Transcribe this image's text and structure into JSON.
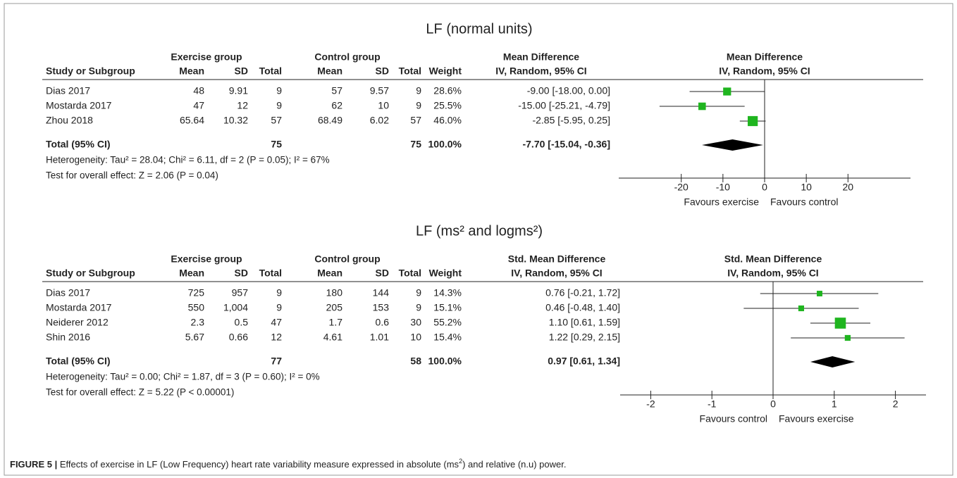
{
  "chart_data": [
    {
      "type": "forest",
      "title": "LF (normal units)",
      "groups": [
        "Exercise group",
        "Control group",
        "Mean Difference"
      ],
      "columns": [
        "Study or Subgroup",
        "Mean",
        "SD",
        "Total",
        "Mean",
        "SD",
        "Total",
        "Weight",
        "IV, Random, 95% CI"
      ],
      "plot_title": "Mean Difference",
      "plot_subtitle": "IV, Random, 95% CI",
      "rows": [
        [
          "Dias 2017",
          "48",
          "9.91",
          "9",
          "57",
          "9.57",
          "9"
        ],
        [
          "Mostarda 2017",
          "47",
          "12",
          "9",
          "62",
          "10",
          "9"
        ],
        [
          "Zhou 2018",
          "65.64",
          "10.32",
          "57",
          "68.49",
          "6.02",
          "57"
        ]
      ],
      "weights": [
        28.6,
        25.5,
        46.0
      ],
      "weight_labels": [
        "28.6%",
        "25.5%",
        "46.0%"
      ],
      "estimates": [
        -9.0,
        -15.0,
        -2.85
      ],
      "ci_low": [
        -18.0,
        -25.21,
        -5.95
      ],
      "ci_high": [
        0.0,
        -4.79,
        0.25
      ],
      "value_labels": [
        "-9.00 [-18.00, 0.00]",
        "-15.00 [-25.21, -4.79]",
        "-2.85 [-5.95, 0.25]"
      ],
      "total": {
        "label": "Total (95% CI)",
        "exercise_total": "75",
        "control_total": "75",
        "weight": "100.0%",
        "estimate": -7.7,
        "ci_low": -15.04,
        "ci_high": -0.36,
        "value_label": "-7.70 [-15.04, -0.36]"
      },
      "heterogeneity": "Heterogeneity: Tau² = 28.04; Chi² = 6.11, df = 2 (P = 0.05); I² = 67%",
      "overall_test": "Test for overall effect: Z = 2.06 (P = 0.04)",
      "xlim": [
        -35,
        35
      ],
      "xticks": [
        -20,
        -10,
        0,
        10,
        20
      ],
      "xlabel_left": "Favours exercise",
      "xlabel_right": "Favours control",
      "color": "#1fb51f"
    },
    {
      "type": "forest",
      "title": "LF (ms² and logms²)",
      "groups": [
        "Exercise group",
        "Control group",
        "Std. Mean Difference"
      ],
      "columns": [
        "Study or Subgroup",
        "Mean",
        "SD",
        "Total",
        "Mean",
        "SD",
        "Total",
        "Weight",
        "IV, Random, 95% CI"
      ],
      "plot_title": "Std. Mean Difference",
      "plot_subtitle": "IV, Random, 95% CI",
      "rows": [
        [
          "Dias 2017",
          "725",
          "957",
          "9",
          "180",
          "144",
          "9"
        ],
        [
          "Mostarda 2017",
          "550",
          "1,004",
          "9",
          "205",
          "153",
          "9"
        ],
        [
          "Neiderer 2012",
          "2.3",
          "0.5",
          "47",
          "1.7",
          "0.6",
          "30"
        ],
        [
          "Shin 2016",
          "5.67",
          "0.66",
          "12",
          "4.61",
          "1.01",
          "10"
        ]
      ],
      "weights": [
        14.3,
        15.1,
        55.2,
        15.4
      ],
      "weight_labels": [
        "14.3%",
        "15.1%",
        "55.2%",
        "15.4%"
      ],
      "estimates": [
        0.76,
        0.46,
        1.1,
        1.22
      ],
      "ci_low": [
        -0.21,
        -0.48,
        0.61,
        0.29
      ],
      "ci_high": [
        1.72,
        1.4,
        1.59,
        2.15
      ],
      "value_labels": [
        "0.76 [-0.21, 1.72]",
        "0.46 [-0.48, 1.40]",
        "1.10 [0.61, 1.59]",
        "1.22 [0.29, 2.15]"
      ],
      "total": {
        "label": "Total (95% CI)",
        "exercise_total": "77",
        "control_total": "58",
        "weight": "100.0%",
        "estimate": 0.97,
        "ci_low": 0.61,
        "ci_high": 1.34,
        "value_label": "0.97 [0.61, 1.34]"
      },
      "heterogeneity": "Heterogeneity: Tau² = 0.00; Chi² = 1.87, df = 3 (P = 0.60); I² = 0%",
      "overall_test": "Test for overall effect: Z = 5.22 (P < 0.00001)",
      "xlim": [
        -2.5,
        2.5
      ],
      "xticks": [
        -2,
        -1,
        0,
        1,
        2
      ],
      "xlabel_left": "Favours control",
      "xlabel_right": "Favours exercise",
      "color": "#1fb51f"
    }
  ],
  "caption": {
    "label": "FIGURE 5 |",
    "parts": [
      "Effects of exercise in LF (Low Frequency) heart rate variability measure expressed in absolute (ms",
      "2",
      ") and relative (n.u) power."
    ]
  }
}
